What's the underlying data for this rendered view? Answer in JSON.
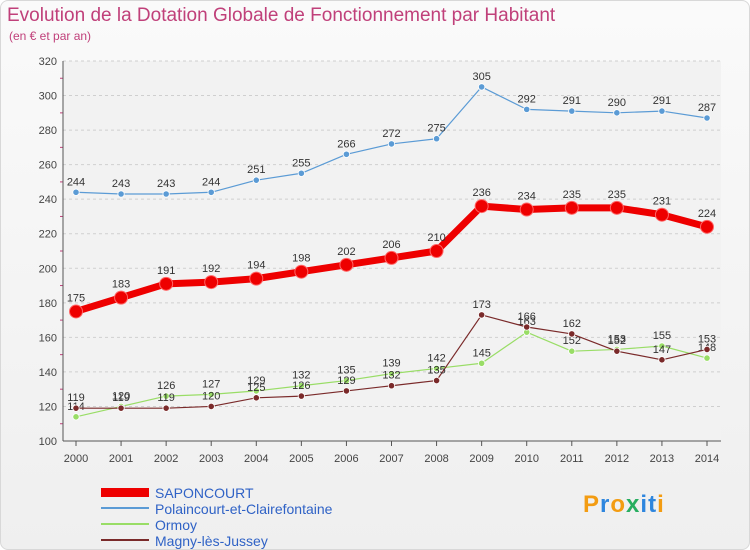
{
  "chart_data": {
    "type": "line",
    "title": "Evolution de la Dotation Globale de Fonctionnement par Habitant",
    "subtitle": "(en € et par an)",
    "x": [
      "2000",
      "2001",
      "2002",
      "2003",
      "2004",
      "2005",
      "2006",
      "2007",
      "2008",
      "2009",
      "2010",
      "2011",
      "2012",
      "2013",
      "2014"
    ],
    "ylim": [
      100,
      320
    ],
    "yticks": [
      100,
      120,
      140,
      160,
      180,
      200,
      220,
      240,
      260,
      280,
      300,
      320
    ],
    "grid": true,
    "legend_position": "bottom-left",
    "series": [
      {
        "name": "SAPONCOURT",
        "color": "#ee0000",
        "values": [
          175,
          183,
          191,
          192,
          194,
          198,
          202,
          206,
          210,
          236,
          234,
          235,
          235,
          231,
          224
        ]
      },
      {
        "name": "Polaincourt-et-Clairefontaine",
        "color": "#5b9bd5",
        "values": [
          244,
          243,
          243,
          244,
          251,
          255,
          266,
          272,
          275,
          305,
          292,
          291,
          290,
          291,
          287
        ]
      },
      {
        "name": "Ormoy",
        "color": "#99dd66",
        "values": [
          114,
          120,
          126,
          127,
          129,
          132,
          135,
          139,
          142,
          145,
          163,
          152,
          153,
          155,
          148
        ]
      },
      {
        "name": "Magny-lès-Jussey",
        "color": "#7a2a2a",
        "values": [
          119,
          119,
          119,
          120,
          125,
          126,
          129,
          132,
          135,
          173,
          166,
          162,
          152,
          147,
          153
        ]
      }
    ]
  },
  "logo": {
    "text": "Proxiti",
    "letters": [
      "P",
      "r",
      "o",
      "x",
      "i",
      "t",
      "i"
    ],
    "colors": [
      "#f39c12",
      "#2e86de",
      "#f39c12",
      "#27ae60",
      "#2e86de",
      "#2e86de",
      "#f39c12"
    ]
  }
}
